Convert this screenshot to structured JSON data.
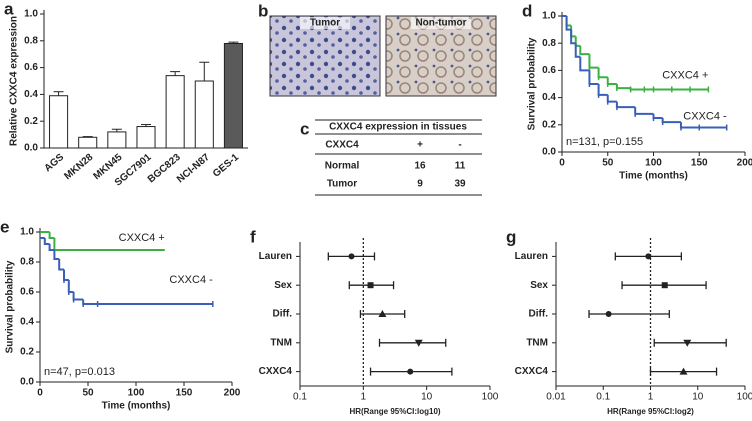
{
  "images": {
    "panel": "b",
    "titles": [
      "Tumor",
      "Non-tumor"
    ]
  },
  "table": {
    "panel": "c",
    "title": "CXXC4 expression in tissues",
    "header": [
      "CXXC4",
      "+",
      "-"
    ],
    "rows": [
      [
        "Normal",
        16,
        11
      ],
      [
        "Tumor",
        9,
        39
      ]
    ]
  },
  "chart_data": [
    {
      "panel": "a",
      "type": "bar",
      "ylabel": "Relative CXXC4 expression",
      "categories": [
        "AGS",
        "MKN28",
        "MKN45",
        "SGC7901",
        "BGC823",
        "NCI-N87",
        "GES-1"
      ],
      "values": [
        0.39,
        0.08,
        0.12,
        0.16,
        0.54,
        0.5,
        0.78
      ],
      "errors": [
        0.03,
        0.005,
        0.02,
        0.015,
        0.03,
        0.14,
        0.01
      ],
      "colors": [
        "#ffffff",
        "#ffffff",
        "#ffffff",
        "#ffffff",
        "#ffffff",
        "#ffffff",
        "#5a5a5a"
      ],
      "ylim": [
        0,
        1
      ],
      "yticks": [
        {
          "value": 0,
          "label": "0.0"
        },
        {
          "value": 0.2,
          "label": "0.2"
        },
        {
          "value": 0.4,
          "label": "0.4"
        },
        {
          "value": 0.6,
          "label": "0.6"
        },
        {
          "value": 0.8,
          "label": "0.8"
        },
        {
          "value": 1,
          "label": "1.0"
        }
      ]
    },
    {
      "panel": "d",
      "type": "line",
      "ylabel": "Survival probability",
      "xlabel": "Time (months)",
      "annotation": "n=131, p=0.155",
      "series": [
        {
          "name": "CXXC4 +",
          "color": "#3cb043",
          "x": [
            0,
            5,
            10,
            15,
            20,
            30,
            40,
            50,
            60,
            75,
            90,
            100,
            120,
            140,
            160
          ],
          "values": [
            1,
            0.93,
            0.85,
            0.78,
            0.72,
            0.62,
            0.55,
            0.5,
            0.47,
            0.46,
            0.46,
            0.46,
            0.46,
            0.46,
            0.46
          ]
        },
        {
          "name": "CXXC4 -",
          "color": "#3a5fb8",
          "x": [
            0,
            5,
            10,
            15,
            20,
            30,
            40,
            50,
            60,
            80,
            100,
            110,
            130,
            150,
            180
          ],
          "values": [
            1,
            0.9,
            0.8,
            0.7,
            0.6,
            0.5,
            0.42,
            0.37,
            0.33,
            0.28,
            0.25,
            0.22,
            0.18,
            0.18,
            0.18
          ]
        }
      ],
      "xlim": [
        0,
        200
      ],
      "xticks": [
        0,
        50,
        100,
        150,
        200
      ],
      "ylim": [
        0,
        1
      ],
      "yticks": [
        {
          "value": 0,
          "label": "0.0"
        },
        {
          "value": 0.2,
          "label": "0.2"
        },
        {
          "value": 0.4,
          "label": "0.4"
        },
        {
          "value": 0.6,
          "label": "0.6"
        },
        {
          "value": 0.8,
          "label": "0.8"
        },
        {
          "value": 1,
          "label": "1.0"
        }
      ]
    },
    {
      "panel": "e",
      "type": "line",
      "ylabel": "Survival probability",
      "xlabel": "Time (months)",
      "annotation": "n=47, p=0.013",
      "series": [
        {
          "name": "CXXC4 +",
          "color": "#3cb043",
          "x": [
            0,
            10,
            15,
            130
          ],
          "values": [
            1,
            0.96,
            0.88,
            0.88
          ]
        },
        {
          "name": "CXXC4 -",
          "color": "#3a5fb8",
          "x": [
            0,
            5,
            10,
            15,
            20,
            25,
            30,
            35,
            45,
            60,
            180
          ],
          "values": [
            0.96,
            0.92,
            0.88,
            0.82,
            0.75,
            0.68,
            0.6,
            0.55,
            0.52,
            0.52,
            0.52
          ]
        }
      ],
      "xlim": [
        0,
        200
      ],
      "xticks": [
        0,
        50,
        100,
        150,
        200
      ],
      "ylim": [
        0,
        1
      ],
      "yticks": [
        {
          "value": 0,
          "label": "0.0"
        },
        {
          "value": 0.2,
          "label": "0.2"
        },
        {
          "value": 0.4,
          "label": "0.4"
        },
        {
          "value": 0.6,
          "label": "0.6"
        },
        {
          "value": 0.8,
          "label": "0.8"
        },
        {
          "value": 1,
          "label": "1.0"
        }
      ]
    },
    {
      "panel": "f",
      "type": "forest",
      "xlabel": "HR(Range 95%CI:log10)",
      "categories": [
        "Lauren",
        "Sex",
        "Diff.",
        "TNM",
        "CXXC4"
      ],
      "values": [
        0.65,
        1.3,
        2.0,
        7.5,
        5.5
      ],
      "low": [
        0.28,
        0.6,
        0.9,
        1.8,
        1.3
      ],
      "high": [
        1.5,
        3.0,
        4.5,
        20,
        25
      ],
      "markers": [
        "circle",
        "square",
        "triangle",
        "triangle-down",
        "circle"
      ],
      "log_x": true,
      "reference": 1,
      "xlim": [
        0.1,
        100
      ],
      "xticks": [
        0.1,
        1,
        10,
        100
      ]
    },
    {
      "panel": "g",
      "type": "forest",
      "xlabel": "HR(Range 95%CI:log2)",
      "categories": [
        "Lauren",
        "Sex",
        "Diff.",
        "TNM",
        "CXXC4"
      ],
      "values": [
        0.9,
        2.0,
        0.13,
        6,
        5
      ],
      "low": [
        0.18,
        0.25,
        0.05,
        1.2,
        1.0
      ],
      "high": [
        4.5,
        15,
        2.5,
        40,
        25
      ],
      "markers": [
        "circle",
        "square",
        "circle",
        "triangle-down",
        "triangle"
      ],
      "log_x": true,
      "reference": 1,
      "xlim": [
        0.01,
        100
      ],
      "xticks": [
        0.01,
        0.1,
        1,
        10,
        100
      ]
    }
  ]
}
